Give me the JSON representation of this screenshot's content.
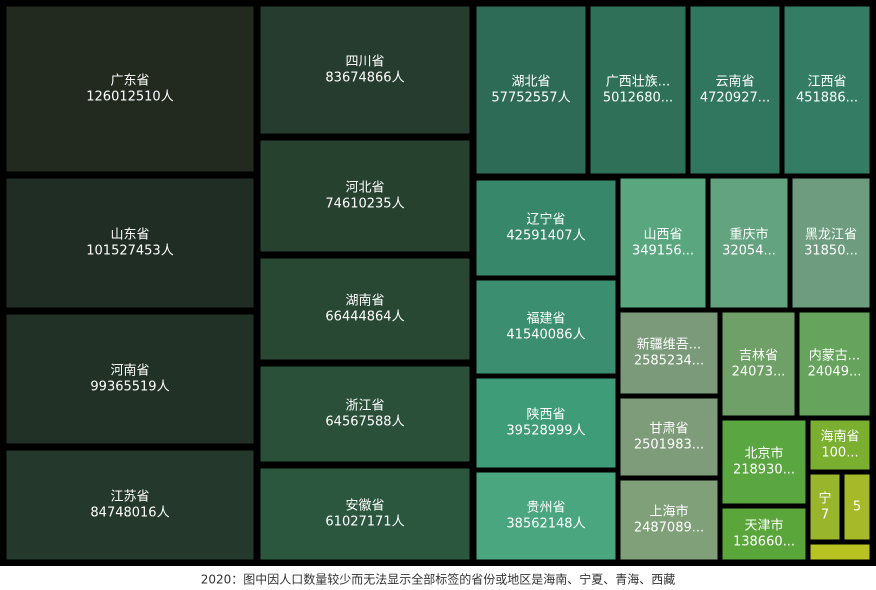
{
  "chart_data": {
    "type": "treemap",
    "note": "2020：图中因人口数量较少而无法显示全部标签的省份或地区是海南、宁夏、青海、西藏",
    "categories": [
      "广东省",
      "山东省",
      "河南省",
      "江苏省",
      "四川省",
      "河北省",
      "湖南省",
      "浙江省",
      "安徽省",
      "湖北省",
      "广西壮族...",
      "云南省",
      "江西省",
      "辽宁省",
      "福建省",
      "陕西省",
      "贵州省",
      "山西省",
      "重庆市",
      "黑龙江省",
      "新疆维吾...",
      "甘肃省",
      "上海市",
      "吉林省",
      "内蒙古...",
      "北京市",
      "天津市",
      "海南省",
      "宁",
      null,
      null
    ],
    "values": [
      126012510,
      101527453,
      99365519,
      84748016,
      83674866,
      74610235,
      66444864,
      64567588,
      61027171,
      57752557,
      50126804,
      47209277,
      45188635,
      42591407,
      41540086,
      39528999,
      38562148,
      34915616,
      32054159,
      31850088,
      25852345,
      25019831,
      24870895,
      24073453,
      24049155,
      21893095,
      13866009,
      10081232,
      7202654,
      5923957,
      3648100
    ],
    "value_labels": [
      "126012510人",
      "101527453人",
      "99365519人",
      "84748016人",
      "83674866人",
      "74610235人",
      "66444864人",
      "64567588人",
      "61027171人",
      "57752557人",
      "5012680...",
      "4720927...",
      "451886...",
      "42591407人",
      "41540086人",
      "39528999人",
      "38562148人",
      "349156...",
      "32054...",
      "31850...",
      "2585234...",
      "2501983...",
      "2487089...",
      "24073...",
      "24049...",
      "218930...",
      "138660...",
      "100...",
      "7",
      "5",
      null
    ],
    "colors": [
      "#222a20",
      "#1f2d24",
      "#213126",
      "#24392b",
      "#253c2f",
      "#27412f",
      "#284834",
      "#2b5039",
      "#2b573e",
      "#2e6b56",
      "#2f7059",
      "#31765e",
      "#347d64",
      "#37876a",
      "#3b8e70",
      "#3e9c78",
      "#4aa67f",
      "#5aa77f",
      "#63a37f",
      "#6d9c7e",
      "#7a9a7a",
      "#7f9c7a",
      "#80a07a",
      "#6fa067",
      "#66a35c",
      "#5aa640",
      "#5aa63a",
      "#7aaf30",
      "#98b52c",
      "#a6b928",
      "#b8c222"
    ]
  }
}
